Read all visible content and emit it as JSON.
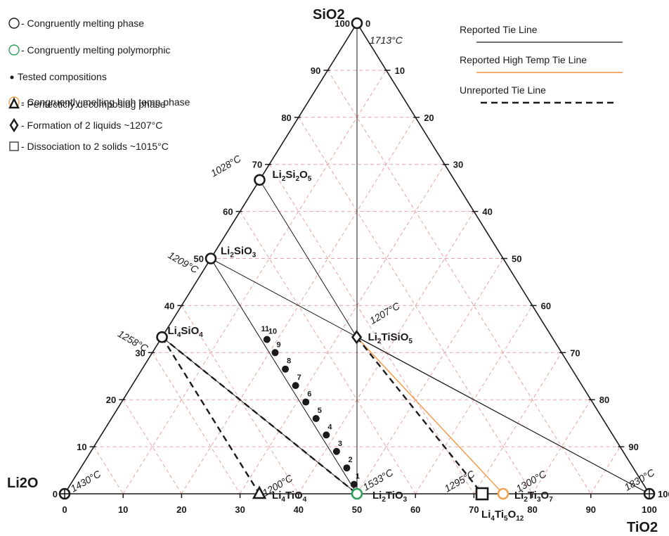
{
  "corners": {
    "top": "SiO2",
    "left": "Li2O",
    "right": "TiO2"
  },
  "corner_temps": {
    "top": "1713°C",
    "left": "1430°C",
    "right": "1830°C"
  },
  "ticks": {
    "sio2": [
      "0",
      "10",
      "20",
      "30",
      "40",
      "50",
      "60",
      "70",
      "80",
      "90",
      "100"
    ],
    "tio2": [
      "0",
      "10",
      "20",
      "30",
      "40",
      "50",
      "60",
      "70",
      "80",
      "90",
      "100"
    ],
    "tio2_right": [
      "100",
      "90",
      "80",
      "70",
      "60",
      "50",
      "40",
      "30",
      "20",
      "10",
      "0"
    ]
  },
  "legend_left": [
    {
      "symbol": "circle-black",
      "text": "- Congruently melting phase"
    },
    {
      "symbol": "circle-green",
      "text": "- Congruently melting polymorphic"
    },
    {
      "symbol": "dot",
      "text": "Tested compositions"
    },
    {
      "symbol": "circle-orange",
      "text": "- Congruently melting high temp phase"
    },
    {
      "symbol": "triangle",
      "text": "- Peritecticly decomposing phase"
    },
    {
      "symbol": "diamond",
      "text": "- Formation of 2 liquids ~1207°C"
    },
    {
      "symbol": "square",
      "text": "- Dissociation to 2 solids ~1015°C"
    }
  ],
  "legend_right": [
    {
      "style": "solid-black",
      "text": "Reported Tie Line"
    },
    {
      "style": "solid-orange",
      "text": "Reported High Temp Tie Line"
    },
    {
      "style": "dashed-black",
      "text": "Unreported Tie Line"
    }
  ],
  "phases": [
    {
      "id": "li2si2o5",
      "label": [
        "Li",
        "2",
        "Si",
        "2",
        "O",
        "5"
      ],
      "marker": "circle",
      "color": "#1a1a1a",
      "temp": "1028°C",
      "s": 66.7,
      "t": 0
    },
    {
      "id": "li2sio3",
      "label": [
        "Li",
        "2",
        "SiO",
        "3"
      ],
      "marker": "circle",
      "color": "#1a1a1a",
      "temp": "1209°C",
      "s": 50,
      "t": 0
    },
    {
      "id": "li4sio4",
      "label": [
        "Li",
        "4",
        "SiO",
        "4"
      ],
      "marker": "circle",
      "color": "#1a1a1a",
      "temp": "1258°C",
      "s": 33.3,
      "t": 0
    },
    {
      "id": "li2tisio5",
      "label": [
        "Li",
        "2",
        "TiSiO",
        "5"
      ],
      "marker": "diamond",
      "color": "#1a1a1a",
      "temp": "1207°C",
      "s": 33.3,
      "t": 33.3
    },
    {
      "id": "li4tio4",
      "label": [
        "Li",
        "4",
        "TiO",
        "4"
      ],
      "marker": "triangle",
      "color": "#1a1a1a",
      "temp": "1200°C",
      "s": 0,
      "t": 33.3
    },
    {
      "id": "li2tio3",
      "label": [
        "Li",
        "2",
        "TiO",
        "3"
      ],
      "marker": "circle",
      "color": "#2ea05a",
      "temp": "1533°C",
      "s": 0,
      "t": 50
    },
    {
      "id": "li4ti5o12",
      "label": [
        "Li",
        "4",
        "Ti",
        "5",
        "O",
        "12"
      ],
      "marker": "square",
      "color": "#1a1a1a",
      "temp": "1295°C",
      "s": 0,
      "t": 71.4
    },
    {
      "id": "li2ti3o7",
      "label": [
        "Li",
        "2",
        "Ti",
        "3",
        "O",
        "7"
      ],
      "marker": "circle",
      "color": "#f2a154",
      "temp": "1300°C",
      "s": 0,
      "t": 75
    }
  ],
  "tested_points": [
    {
      "n": "1",
      "s": 2,
      "t": 48.5
    },
    {
      "n": "2",
      "s": 5.5,
      "t": 45.5
    },
    {
      "n": "3",
      "s": 9,
      "t": 42
    },
    {
      "n": "4",
      "s": 12.5,
      "t": 38.5
    },
    {
      "n": "5",
      "s": 16,
      "t": 35
    },
    {
      "n": "6",
      "s": 19.5,
      "t": 31.5
    },
    {
      "n": "7",
      "s": 23,
      "t": 28
    },
    {
      "n": "8",
      "s": 26.5,
      "t": 24.5
    },
    {
      "n": "9",
      "s": 30,
      "t": 21
    },
    {
      "n": "10",
      "s": 32.8,
      "t": 18.2
    },
    {
      "n": "11",
      "s": 33.3,
      "t": 16.7
    }
  ],
  "tie_lines": [
    {
      "from": "li2si2o5",
      "to": "li2tisio5",
      "style": "solid-black"
    },
    {
      "from": "li2sio3",
      "to": "li2tio3",
      "style": "solid-black"
    },
    {
      "from": "li4sio4",
      "to": "li2tio3",
      "style": "solid-black"
    },
    {
      "from": "sio2",
      "to": "li2tio3",
      "style": "solid-black"
    },
    {
      "from": "li2sio3",
      "to": "tio2",
      "style": "solid-black"
    },
    {
      "from": "li2tisio5",
      "to": "tio2",
      "style": "solid-black"
    },
    {
      "from": "li2tisio5",
      "to": "li2ti3o7",
      "style": "solid-orange"
    },
    {
      "from": "li2tisio5",
      "to": "li4ti5o12",
      "style": "dashed-black"
    },
    {
      "from": "li4sio4",
      "to": "li4tio4",
      "style": "dashed-black"
    },
    {
      "from": "li4sio4",
      "to": "li2tio3",
      "style": "dashed-black"
    }
  ]
}
